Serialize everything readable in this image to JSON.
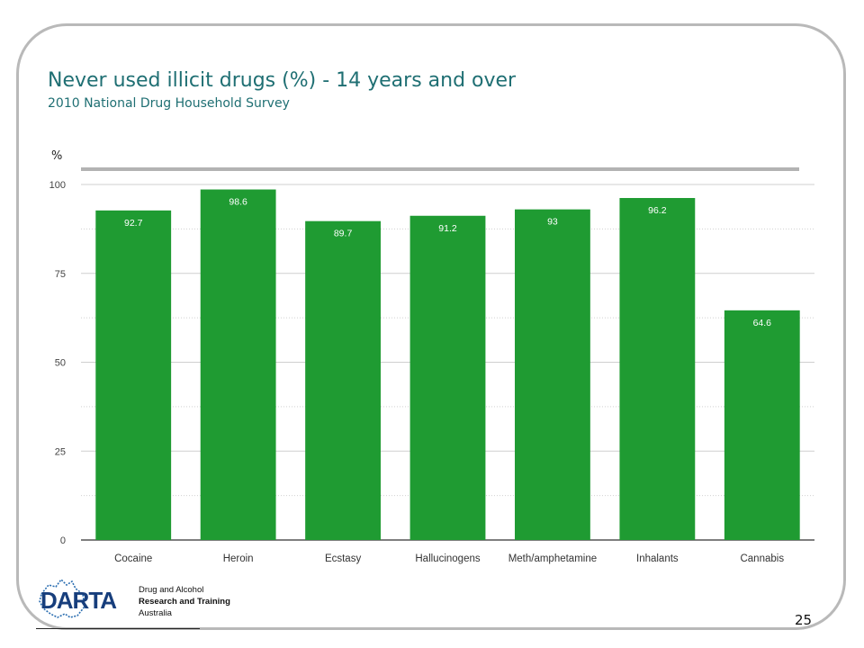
{
  "slide": {
    "title": "Never used illicit drugs (%) - 14 years and over",
    "subtitle": "2010 National Drug Household Survey",
    "page_number": "25"
  },
  "logo": {
    "name": "DARTA",
    "line1": "Drug and Alcohol",
    "line2": "Research and Training",
    "line3": "Australia"
  },
  "chart_data": {
    "type": "bar",
    "title": "Never used illicit drugs (%) - 14 years and over",
    "subtitle": "2010 National Drug Household Survey",
    "ylabel": "%",
    "xlabel": "",
    "ylim": [
      0,
      100
    ],
    "yticks": [
      0,
      25,
      50,
      75,
      100
    ],
    "grid": true,
    "categories": [
      "Cocaine",
      "Heroin",
      "Ecstasy",
      "Hallucinogens",
      "Meth/amphetamine",
      "Inhalants",
      "Cannabis"
    ],
    "values": [
      92.7,
      98.6,
      89.7,
      91.2,
      93,
      96.2,
      64.6
    ],
    "data_labels": [
      "92.7",
      "98.6",
      "89.7",
      "91.2",
      "93",
      "96.2",
      "64.6"
    ],
    "bar_color": "#1f9b32",
    "label_color": "#ffffff"
  }
}
